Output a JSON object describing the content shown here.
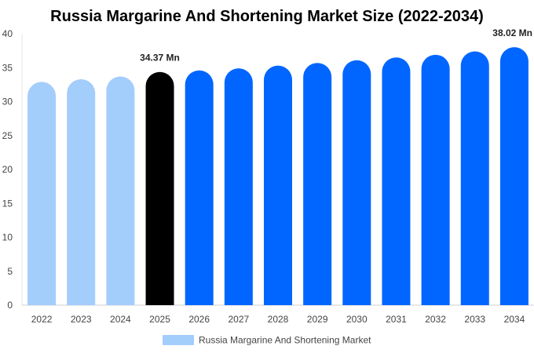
{
  "chart_data": {
    "type": "bar",
    "title": "Russia Margarine And Shortening Market Size (2022-2034)",
    "categories": [
      "2022",
      "2023",
      "2024",
      "2025",
      "2026",
      "2027",
      "2028",
      "2029",
      "2030",
      "2031",
      "2032",
      "2033",
      "2034"
    ],
    "series": [
      {
        "name": "Russia Margarine And Shortening Market",
        "values": [
          32.9,
          33.3,
          33.7,
          34.37,
          34.6,
          34.9,
          35.3,
          35.7,
          36.1,
          36.5,
          36.9,
          37.4,
          38.02
        ]
      }
    ],
    "ylim": [
      0,
      40
    ],
    "yticks": [
      0,
      5,
      10,
      15,
      20,
      25,
      30,
      35,
      40
    ],
    "data_labels": [
      {
        "index": 3,
        "text": "34.37 Mn"
      },
      {
        "index": 12,
        "text": "38.02 Mn"
      }
    ],
    "colors": {
      "historical": "#a3cdfb",
      "current": "#000000",
      "forecast": "#0066ff",
      "legend": "#a3cdfb"
    },
    "legend": {
      "position": "bottom",
      "label": "Russia Margarine And Shortening Market"
    },
    "grid": false
  }
}
